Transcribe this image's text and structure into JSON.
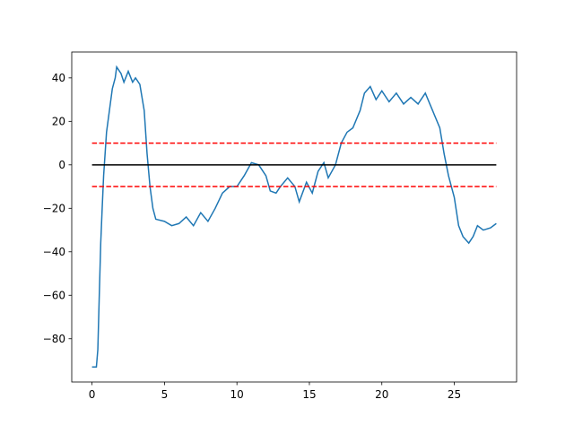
{
  "chart_data": {
    "type": "line",
    "xlim": [
      -1.4,
      29.3
    ],
    "ylim": [
      -99.9,
      51.9
    ],
    "xticks": [
      0,
      5,
      10,
      15,
      20,
      25
    ],
    "yticks": [
      {
        "value": -80,
        "label": "−80"
      },
      {
        "value": -60,
        "label": "−60"
      },
      {
        "value": -40,
        "label": "−40"
      },
      {
        "value": -20,
        "label": "−20"
      },
      0,
      20,
      40
    ],
    "series": [
      {
        "color": "#1f77b4",
        "dash": false,
        "x": [
          0,
          0.3,
          0.4,
          0.5,
          0.6,
          0.7,
          0.8,
          1.0,
          1.2,
          1.4,
          1.6,
          1.7,
          2.0,
          2.2,
          2.5,
          2.8,
          3.0,
          3.3,
          3.6,
          3.8,
          4.0,
          4.2,
          4.4,
          5.0,
          5.5,
          6.0,
          6.5,
          7.0,
          7.5,
          8.0,
          8.5,
          9.0,
          9.5,
          10.0,
          10.5,
          11.0,
          11.5,
          12.0,
          12.3,
          12.7,
          13.0,
          13.5,
          14.0,
          14.3,
          14.8,
          15.2,
          15.6,
          16.0,
          16.3,
          16.8,
          17.2,
          17.6,
          18.0,
          18.5,
          18.8,
          19.2,
          19.6,
          20.0,
          20.5,
          21.0,
          21.5,
          22.0,
          22.5,
          23.0,
          23.5,
          24.0,
          24.3,
          24.6,
          25.0,
          25.3,
          25.6,
          26.0,
          26.3,
          26.6,
          27.0,
          27.5,
          27.9
        ],
        "values": [
          -93,
          -93,
          -85,
          -60,
          -36,
          -20,
          -5,
          15,
          25,
          35,
          40,
          45,
          42,
          38,
          43,
          38,
          40,
          37,
          25,
          5,
          -10,
          -20,
          -25,
          -26,
          -28,
          -27,
          -24,
          -28,
          -22,
          -26,
          -20,
          -13,
          -10,
          -10,
          -5,
          1,
          0,
          -5,
          -12,
          -13,
          -10,
          -6,
          -10,
          -17,
          -8,
          -13,
          -3,
          1,
          -6,
          0,
          10,
          15,
          17,
          25,
          33,
          36,
          30,
          34,
          29,
          33,
          28,
          31,
          28,
          33,
          25,
          17,
          5,
          -5,
          -15,
          -28,
          -33,
          -36,
          -33,
          -28,
          -30,
          -29,
          -27
        ]
      },
      {
        "color": "#000000",
        "dash": false,
        "x": [
          0,
          27.9
        ],
        "values": [
          0,
          0
        ]
      },
      {
        "color": "#ff0000",
        "dash": true,
        "x": [
          0,
          27.9
        ],
        "values": [
          10,
          10
        ]
      },
      {
        "color": "#ff0000",
        "dash": true,
        "x": [
          0,
          27.9
        ],
        "values": [
          -10,
          -10
        ]
      }
    ]
  }
}
